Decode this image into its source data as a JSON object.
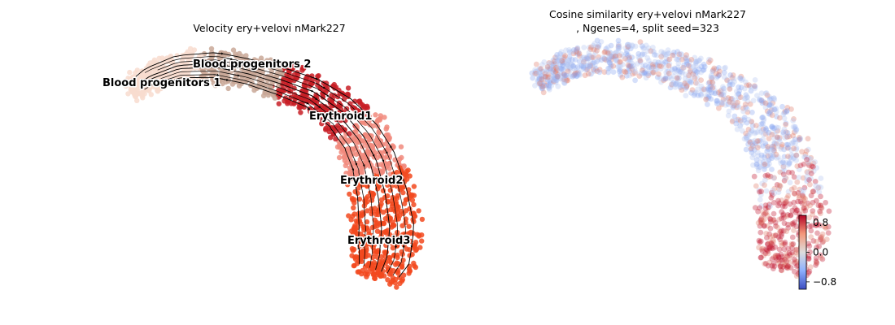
{
  "chart_data": [
    {
      "type": "scatter",
      "title": "Velocity ery+velovi nMark227",
      "xlabel": "",
      "ylabel": "",
      "grid": false,
      "overlay": "velocity-streamlines",
      "clusters": [
        {
          "name": "Blood progenitors 1",
          "color": "#f8dccf"
        },
        {
          "name": "Blood progenitors 2",
          "color": "#c9a898"
        },
        {
          "name": "Erythroid1",
          "color": "#c81f26"
        },
        {
          "name": "Erythroid2",
          "color": "#f18a7c"
        },
        {
          "name": "Erythroid3",
          "color": "#f2491f"
        }
      ]
    },
    {
      "type": "scatter",
      "title_line1": "Cosine similarity ery+velovi nMark227",
      "title_line2": ", Ngenes=4, split seed=323",
      "xlabel": "",
      "ylabel": "",
      "grid": false,
      "colormap": "coolwarm",
      "colorbar": {
        "range": [
          -1,
          1
        ],
        "ticks": [
          0.8,
          0.0,
          -0.8
        ],
        "tick_labels": [
          "0.8",
          "0.0",
          "−0.8"
        ],
        "placement": "lower-right"
      }
    }
  ]
}
